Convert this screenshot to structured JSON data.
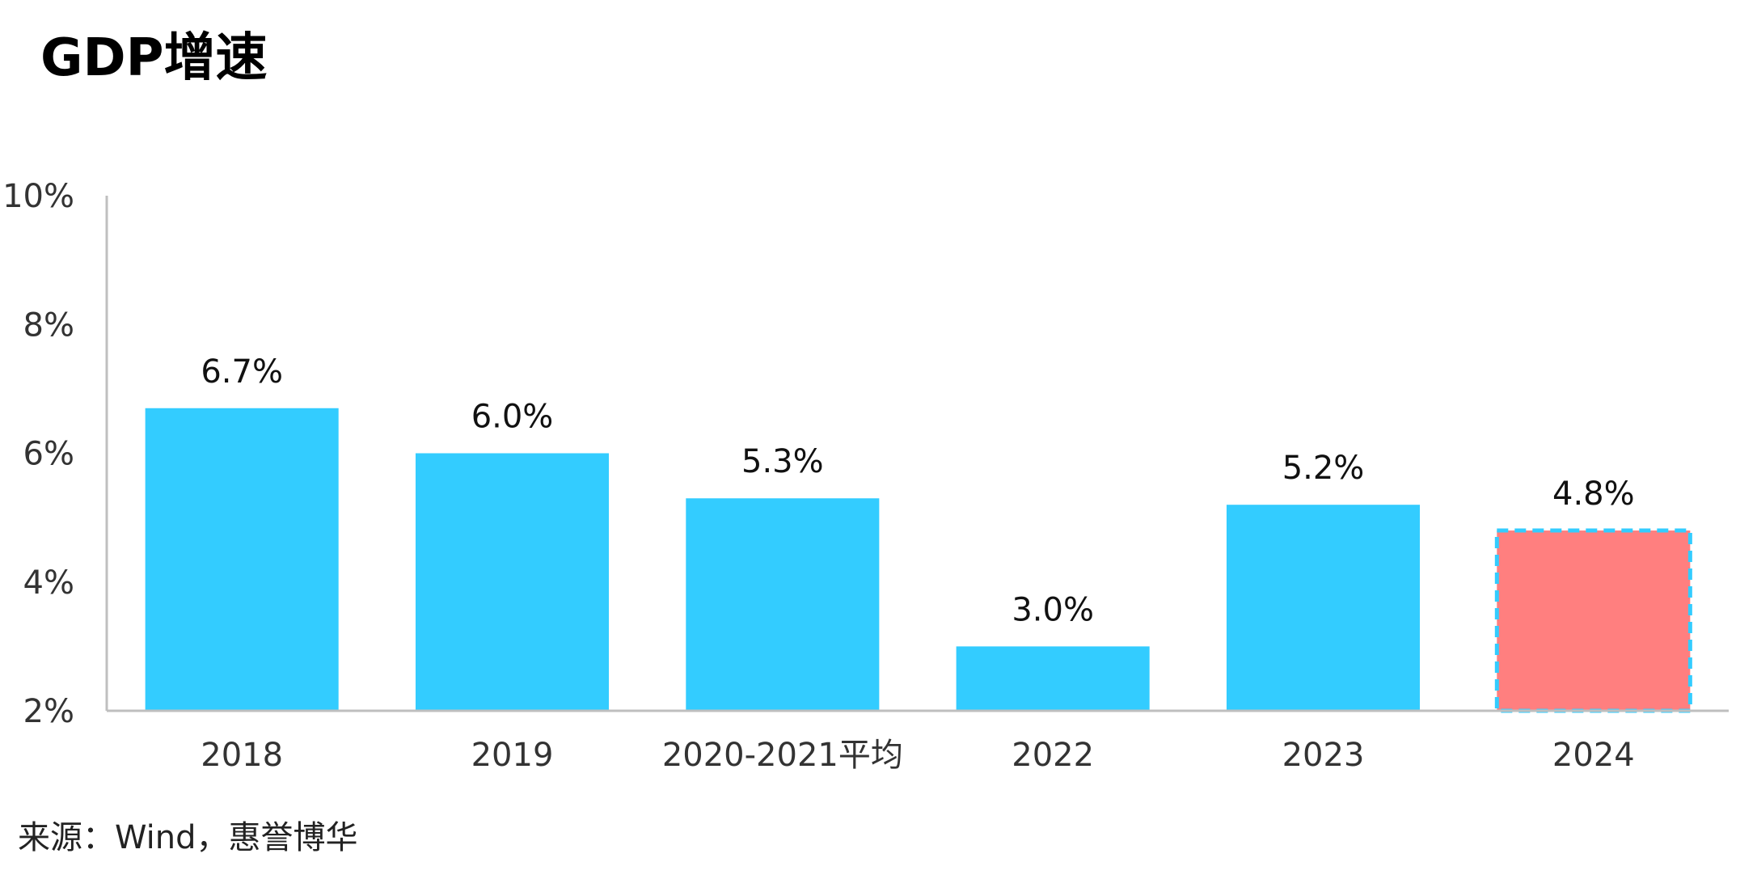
{
  "title": "GDP增速",
  "source": "来源：Wind，惠誉博华",
  "colors": {
    "bar": "#33ccff",
    "highlight_bar": "#ff7f7f",
    "highlight_border": "#33ccff",
    "axis": "#bfbfbf"
  },
  "chart_data": {
    "type": "bar",
    "title": "GDP增速",
    "xlabel": "",
    "ylabel": "",
    "categories": [
      "2018",
      "2019",
      "2020-2021平均",
      "2022",
      "2023",
      "2024"
    ],
    "values": [
      6.7,
      6.0,
      5.3,
      3.0,
      5.2,
      4.8
    ],
    "data_labels": [
      "6.7%",
      "6.0%",
      "5.3%",
      "3.0%",
      "5.2%",
      "4.8%"
    ],
    "ylim": [
      2,
      10
    ],
    "yticks": [
      2,
      4,
      6,
      8,
      10
    ],
    "ytick_labels": [
      "2%",
      "4%",
      "6%",
      "8%",
      "10%"
    ],
    "highlight_category": "2024",
    "grid": false,
    "legend": "none"
  }
}
